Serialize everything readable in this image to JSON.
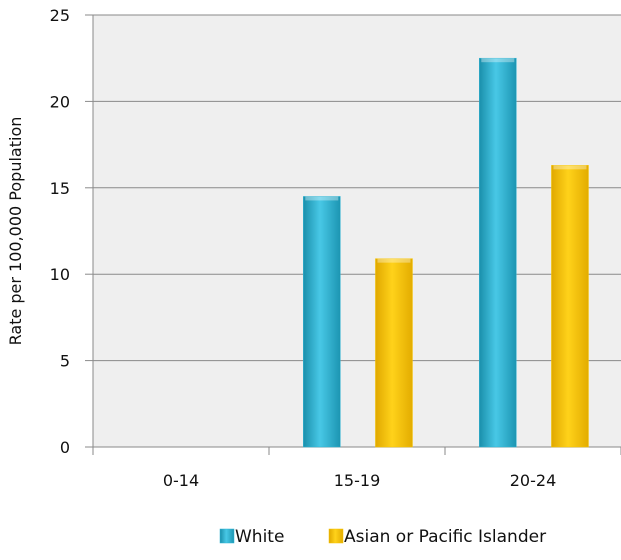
{
  "chart_data": {
    "type": "bar",
    "categories": [
      "0-14",
      "15-19",
      "20-24"
    ],
    "series": [
      {
        "name": "White",
        "values": [
          0,
          14.5,
          22.5
        ],
        "color": "#2fb4d3"
      },
      {
        "name": "Asian or Pacific Islander",
        "values": [
          0,
          10.9,
          16.3
        ],
        "color": "#f7c400"
      }
    ],
    "xlabel": "",
    "ylabel": "Rate per 100,000 Population",
    "ylim": [
      0,
      25
    ],
    "yticks": [
      0,
      5,
      10,
      15,
      20,
      25
    ],
    "grid": true,
    "plot_background": "#efefef",
    "legend": "bottom"
  }
}
